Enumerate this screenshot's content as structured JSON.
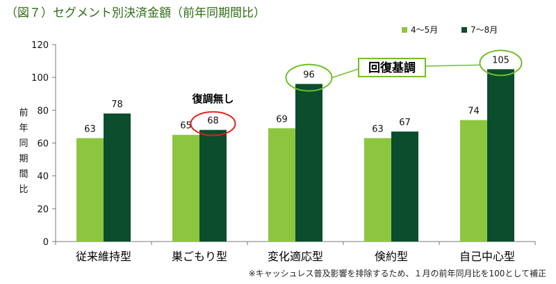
{
  "figure": {
    "title": "（図７）セグメント別決済金額（前年同期間比）",
    "footnote": "※キャッシュレス普及影響を排除するため、１月の前年同月比を100として補正"
  },
  "colors": {
    "series_light": "#8cc63f",
    "series_dark": "#0b4d2c",
    "title": "#2e6b16",
    "ellipse_red": "#e0201a",
    "ellipse_green": "#6fbf2a"
  },
  "chart_data": {
    "type": "bar",
    "categories": [
      "従来維持型",
      "巣ごもり型",
      "変化適応型",
      "倹約型",
      "自己中心型"
    ],
    "series": [
      {
        "name": "4～5月",
        "values": [
          63,
          65,
          69,
          63,
          74
        ]
      },
      {
        "name": "7～8月",
        "values": [
          78,
          68,
          96,
          67,
          105
        ]
      }
    ],
    "ylabel": "前年同期間比",
    "ylim": [
      0,
      120
    ],
    "yticks": [
      0,
      20,
      40,
      60,
      80,
      100,
      120
    ],
    "grid": false,
    "legend_position": "top-right",
    "annotations": {
      "no_recovery": "復調無し",
      "recovery": "回復基調"
    }
  }
}
